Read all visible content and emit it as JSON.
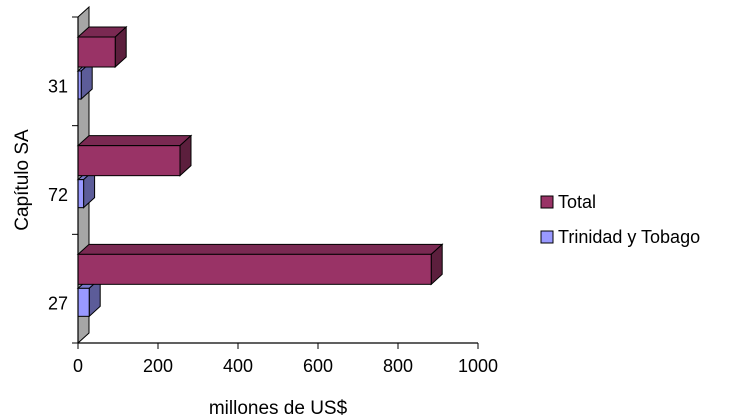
{
  "chart_data": {
    "type": "bar",
    "orientation": "horizontal",
    "three_d": true,
    "categories": [
      "27",
      "72",
      "31"
    ],
    "series": [
      {
        "name": "Total",
        "values": [
          883,
          255,
          93
        ],
        "color": "#993366"
      },
      {
        "name": "Trinidad y Tobago",
        "values": [
          28,
          14,
          8
        ],
        "color": "#9999ff"
      }
    ],
    "xlabel": "millones de US$",
    "ylabel": "Capítulo SA",
    "xlim": [
      0,
      1000
    ],
    "xticks": [
      "0",
      "200",
      "400",
      "600",
      "800",
      "1000"
    ],
    "grid": false,
    "legend_position": "right"
  }
}
